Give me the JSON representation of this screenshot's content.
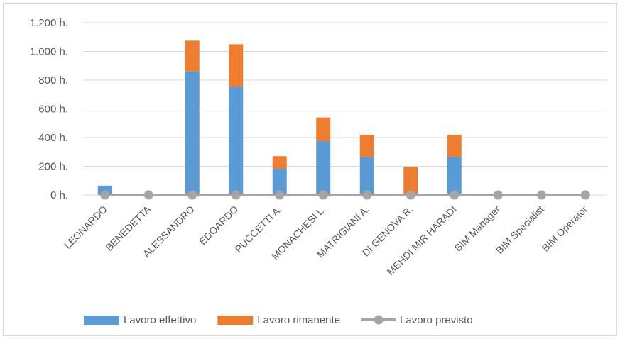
{
  "chart_data": {
    "type": "bar",
    "stacked": true,
    "categories": [
      "LEONARDO",
      "BENEDETTA",
      "ALESSANDRO",
      "EDOARDO",
      "PUCCETTI A.",
      "MONACHESI L.",
      "MATRIGIANI A.",
      "DI GENOVA R.",
      "MEHDI MIR HARADI",
      "BIM Manager",
      "BIM Specialist",
      "BIM Operator"
    ],
    "series": [
      {
        "name": "Lavoro effettivo",
        "kind": "bar",
        "color": "#5b9bd5",
        "values": [
          65,
          0,
          860,
          755,
          185,
          375,
          265,
          0,
          265,
          0,
          0,
          0
        ]
      },
      {
        "name": "Lavoro rimanente",
        "kind": "bar",
        "color": "#ed7d31",
        "values": [
          0,
          0,
          215,
          295,
          85,
          165,
          155,
          195,
          155,
          0,
          0,
          0
        ]
      },
      {
        "name": "Lavoro previsto",
        "kind": "line",
        "color": "#a5a5a5",
        "values": [
          0,
          0,
          0,
          0,
          0,
          0,
          0,
          0,
          0,
          0,
          0,
          0
        ]
      }
    ],
    "yticks": [
      "0 h.",
      "200 h.",
      "400 h.",
      "600 h.",
      "800 h.",
      "1.000 h.",
      "1.200 h."
    ],
    "ylim": [
      0,
      1200
    ],
    "grid": true,
    "legend_position": "bottom"
  }
}
